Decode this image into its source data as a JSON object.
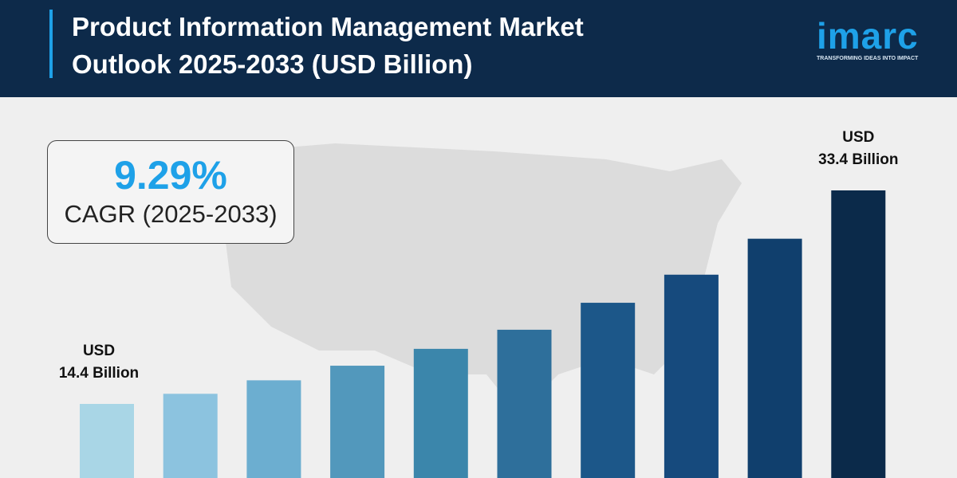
{
  "header": {
    "title": "Product Information Management Market Outlook 2025-2033 (USD Billion)",
    "logo": "imarc",
    "tagline": "TRANSFORMING IDEAS INTO IMPACT"
  },
  "callout": {
    "value": "9.29%",
    "label": "CAGR (2025-2033)"
  },
  "chart_data": {
    "type": "bar",
    "categories": [
      null,
      null,
      null,
      null,
      null,
      null,
      null,
      null,
      null,
      null
    ],
    "values": [
      14.4,
      15.3,
      16.5,
      17.8,
      19.3,
      21.0,
      23.4,
      25.9,
      29.1,
      33.4
    ],
    "value_labels": [
      "USD\n14.4 Billion",
      null,
      null,
      null,
      null,
      null,
      null,
      null,
      null,
      "USD\n33.4 Billion"
    ],
    "colors": [
      "#a9d6e6",
      "#8cc3df",
      "#6caed0",
      "#5298bc",
      "#3b86ab",
      "#2e6f9b",
      "#1c5789",
      "#164a7d",
      "#103f6d",
      "#0b2a4a"
    ]
  }
}
